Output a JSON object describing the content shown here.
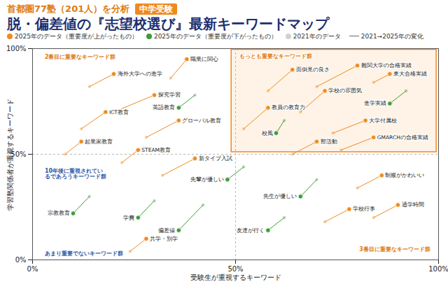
{
  "chart_data": {
    "type": "scatter",
    "title": "脱・偏差値の『志望校選び』最新キーワードマップ",
    "subtitle": "首都圏77塾（201人）を分析",
    "badge": "中学受験",
    "x_label": "受験生が重視するキーワード",
    "y_label": "学習塾関係者が重視するキーワード",
    "xlim": [
      0,
      100
    ],
    "ylim": [
      0,
      100
    ],
    "xticks": [
      {
        "value": 0,
        "label": "0%"
      },
      {
        "value": 50,
        "label": "50%"
      },
      {
        "value": 100,
        "label": "100%"
      }
    ],
    "yticks": [
      {
        "value": 0,
        "label": "0%"
      },
      {
        "value": 50,
        "label": "50%"
      },
      {
        "value": 100,
        "label": "100%"
      }
    ],
    "grid": true,
    "legend": "top",
    "start_label": "2021年のデータ",
    "change_label": "2021→2025年の変化",
    "annotations": [
      {
        "text": "もっとも重要なキーワード群",
        "color": "#e07a10"
      },
      {
        "text": "2番目に重要なキーワード群",
        "color": "#e07a10"
      },
      {
        "text": "10年後に重視されているであろうキーワード群",
        "color": "#2f5aa8"
      },
      {
        "text": "あまり重要でないキーワード群",
        "color": "#2f5aa8"
      },
      {
        "text": "3番目に重要なキーワード群",
        "color": "#e07a10"
      }
    ],
    "series": [
      {
        "name": "2025年のデータ（重要度が上がったもの）",
        "color": "#ef8a1f",
        "points": [
          {
            "label": "難関大学の合格実績",
            "x2021": 70,
            "y2021": 82,
            "x2025": 80,
            "y2025": 92
          },
          {
            "label": "東大合格実績",
            "x2021": 84,
            "y2021": 84,
            "x2025": 88,
            "y2025": 88
          },
          {
            "label": "面倒見の良さ",
            "x2021": 58,
            "y2021": 80,
            "x2025": 64,
            "y2025": 90
          },
          {
            "label": "学校の雰囲気",
            "x2021": 66,
            "y2021": 70,
            "x2025": 72,
            "y2025": 80
          },
          {
            "label": "教員の教育力",
            "x2021": 52,
            "y2021": 62,
            "x2025": 58,
            "y2025": 72
          },
          {
            "label": "大学付属校",
            "x2021": 74,
            "y2021": 60,
            "x2025": 82,
            "y2025": 66
          },
          {
            "label": "GMARCHの合格実績",
            "x2021": 76,
            "y2021": 52,
            "x2025": 84,
            "y2025": 58
          },
          {
            "label": "部活動",
            "x2021": 64,
            "y2021": 50,
            "x2025": 70,
            "y2025": 56
          },
          {
            "label": "制服がかわいい",
            "x2021": 80,
            "y2021": 34,
            "x2025": 86,
            "y2025": 40
          },
          {
            "label": "通学時間",
            "x2021": 84,
            "y2021": 20,
            "x2025": 90,
            "y2025": 26
          },
          {
            "label": "学校行事",
            "x2021": 72,
            "y2021": 18,
            "x2025": 78,
            "y2025": 24
          },
          {
            "label": "探究学習",
            "x2021": 20,
            "y2021": 70,
            "x2025": 30,
            "y2025": 78
          },
          {
            "label": "ICT教育",
            "x2021": 12,
            "y2021": 62,
            "x2025": 18,
            "y2025": 70
          },
          {
            "label": "グローバル教育",
            "x2021": 28,
            "y2021": 58,
            "x2025": 36,
            "y2025": 66
          },
          {
            "label": "起業家教育",
            "x2021": 8,
            "y2021": 50,
            "x2025": 12,
            "y2025": 56
          },
          {
            "label": "STEAM教育",
            "x2021": 22,
            "y2021": 46,
            "x2025": 26,
            "y2025": 52
          },
          {
            "label": "新タイプ入試",
            "x2021": 32,
            "y2021": 40,
            "x2025": 40,
            "y2025": 48
          },
          {
            "label": "職業に関心",
            "x2021": 34,
            "y2021": 86,
            "x2025": 38,
            "y2025": 95
          },
          {
            "label": "海外大学への進学",
            "x2021": 14,
            "y2021": 82,
            "x2025": 20,
            "y2025": 88
          },
          {
            "label": "共学・別学",
            "x2021": 24,
            "y2021": 4,
            "x2025": 28,
            "y2025": 10
          }
        ]
      },
      {
        "name": "2025年のデータ（重要度が下がったもの）",
        "color": "#3f9a36",
        "points": [
          {
            "label": "進学実績",
            "x2021": 92,
            "y2021": 80,
            "x2025": 88,
            "y2025": 74
          },
          {
            "label": "校風",
            "x2021": 62,
            "y2021": 66,
            "x2025": 60,
            "y2025": 60
          },
          {
            "label": "先生が優しい",
            "x2021": 70,
            "y2021": 38,
            "x2025": 66,
            "y2025": 30
          },
          {
            "label": "友達が行く",
            "x2021": 62,
            "y2021": 20,
            "x2025": 58,
            "y2025": 14
          },
          {
            "label": "先輩が優しい",
            "x2021": 52,
            "y2021": 44,
            "x2025": 48,
            "y2025": 38
          },
          {
            "label": "英語教育",
            "x2021": 40,
            "y2021": 78,
            "x2025": 36,
            "y2025": 72
          },
          {
            "label": "宗教教育",
            "x2021": 14,
            "y2021": 30,
            "x2025": 10,
            "y2025": 22
          },
          {
            "label": "学費",
            "x2021": 30,
            "y2021": 28,
            "x2025": 26,
            "y2025": 20
          },
          {
            "label": "偏差値",
            "x2021": 42,
            "y2021": 26,
            "x2025": 36,
            "y2025": 14
          }
        ]
      }
    ]
  }
}
